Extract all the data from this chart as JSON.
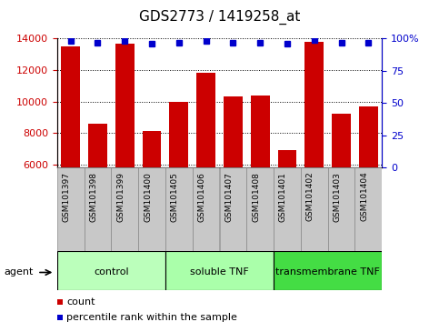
{
  "title": "GDS2773 / 1419258_at",
  "samples": [
    "GSM101397",
    "GSM101398",
    "GSM101399",
    "GSM101400",
    "GSM101405",
    "GSM101406",
    "GSM101407",
    "GSM101408",
    "GSM101401",
    "GSM101402",
    "GSM101403",
    "GSM101404"
  ],
  "counts": [
    13500,
    8600,
    13700,
    8100,
    10000,
    11800,
    10300,
    10400,
    6900,
    13800,
    9200,
    9700
  ],
  "percentile": [
    98,
    97,
    98,
    96,
    97,
    98,
    97,
    97,
    96,
    99,
    97,
    97
  ],
  "bar_color": "#cc0000",
  "dot_color": "#0000cc",
  "ylim_left": [
    5800,
    14000
  ],
  "ylim_right": [
    0,
    100
  ],
  "yticks_left": [
    6000,
    8000,
    10000,
    12000,
    14000
  ],
  "yticks_right": [
    0,
    25,
    50,
    75,
    100
  ],
  "groups": [
    {
      "label": "control",
      "start": 0,
      "end": 4,
      "color": "#bbffbb"
    },
    {
      "label": "soluble TNF",
      "start": 4,
      "end": 8,
      "color": "#aaffaa"
    },
    {
      "label": "transmembrane TNF",
      "start": 8,
      "end": 12,
      "color": "#44dd44"
    }
  ],
  "agent_label": "agent",
  "legend_items": [
    {
      "color": "#cc0000",
      "label": "count"
    },
    {
      "color": "#0000cc",
      "label": "percentile rank within the sample"
    }
  ],
  "title_fontsize": 11,
  "tick_fontsize": 8,
  "bar_label_fontsize": 6.5,
  "group_label_fontsize": 8,
  "legend_fontsize": 8,
  "xtick_bg": "#c8c8c8",
  "xtick_border": "#888888",
  "white": "#ffffff",
  "plot_bg": "#ffffff"
}
